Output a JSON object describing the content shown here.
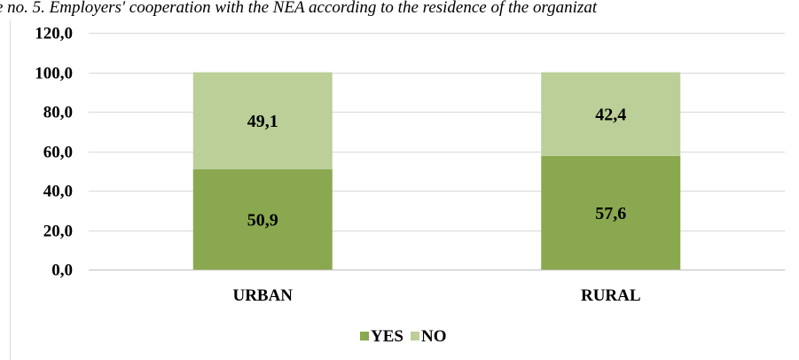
{
  "chart_data": {
    "type": "bar",
    "stacked": true,
    "title": "e no. 5. Employers' cooperation with the NEA according to the residence of the organizat",
    "categories": [
      "URBAN",
      "RURAL"
    ],
    "series": [
      {
        "name": "YES",
        "values": [
          50.9,
          57.6
        ],
        "labels": [
          "50,9",
          "57,6"
        ],
        "color": "#8aa84f"
      },
      {
        "name": "NO",
        "values": [
          49.1,
          42.4
        ],
        "labels": [
          "49,1",
          "42,4"
        ],
        "color": "#bccf98"
      }
    ],
    "ylim": [
      0,
      120
    ],
    "yticks": [
      0,
      20,
      40,
      60,
      80,
      100,
      120
    ],
    "ytick_labels": [
      "0,0",
      "20,0",
      "40,0",
      "60,0",
      "80,0",
      "100,0",
      "120,0"
    ],
    "grid": true,
    "legend_position": "bottom"
  }
}
